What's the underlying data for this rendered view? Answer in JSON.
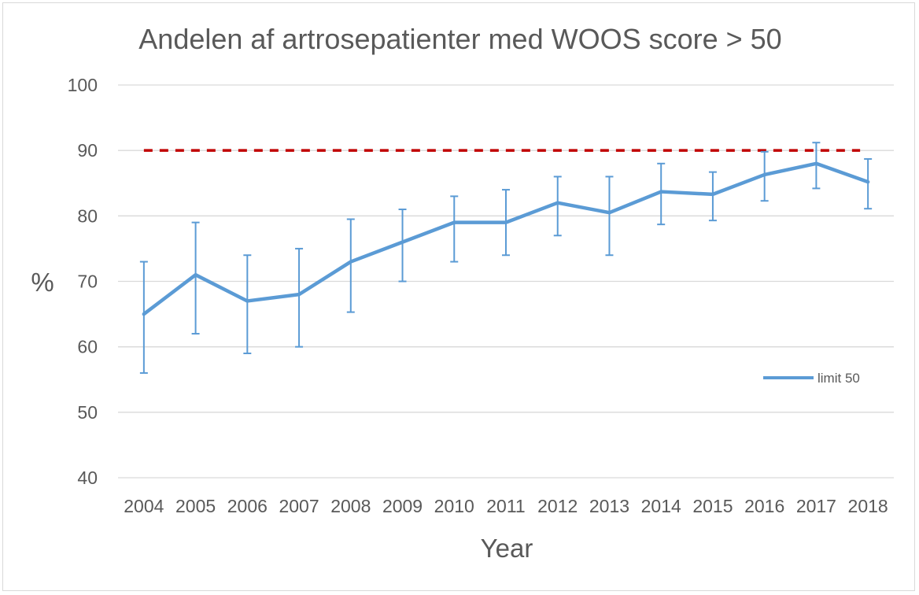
{
  "chart_data": {
    "type": "line",
    "title": "Andelen af artrosepatienter med WOOS score > 50",
    "xlabel": "Year",
    "ylabel": "%",
    "ylim": [
      40,
      100
    ],
    "yticks": [
      "40",
      "50",
      "60",
      "70",
      "80",
      "90",
      "100"
    ],
    "grid": true,
    "legend_position": "right",
    "categories": [
      "2004",
      "2005",
      "2006",
      "2007",
      "2008",
      "2009",
      "2010",
      "2011",
      "2012",
      "2013",
      "2014",
      "2015",
      "2016",
      "2017",
      "2018"
    ],
    "series": [
      {
        "name": "limit 50",
        "color": "#5b9bd5",
        "values": [
          65,
          71,
          67,
          68,
          73,
          76,
          79,
          79,
          82,
          80.5,
          83.7,
          83.3,
          86.3,
          88,
          85.2
        ],
        "error_low": [
          56,
          62,
          59,
          60,
          65.3,
          70,
          73,
          74,
          77,
          74,
          78.7,
          79.3,
          82.3,
          84.2,
          81.1
        ],
        "error_high": [
          73,
          79,
          74,
          75,
          79.5,
          81,
          83,
          84,
          86,
          86,
          88,
          86.7,
          89.8,
          91.2,
          88.7
        ]
      }
    ],
    "reference_line": {
      "value": 90,
      "color": "#c00000",
      "style": "dashed"
    }
  }
}
